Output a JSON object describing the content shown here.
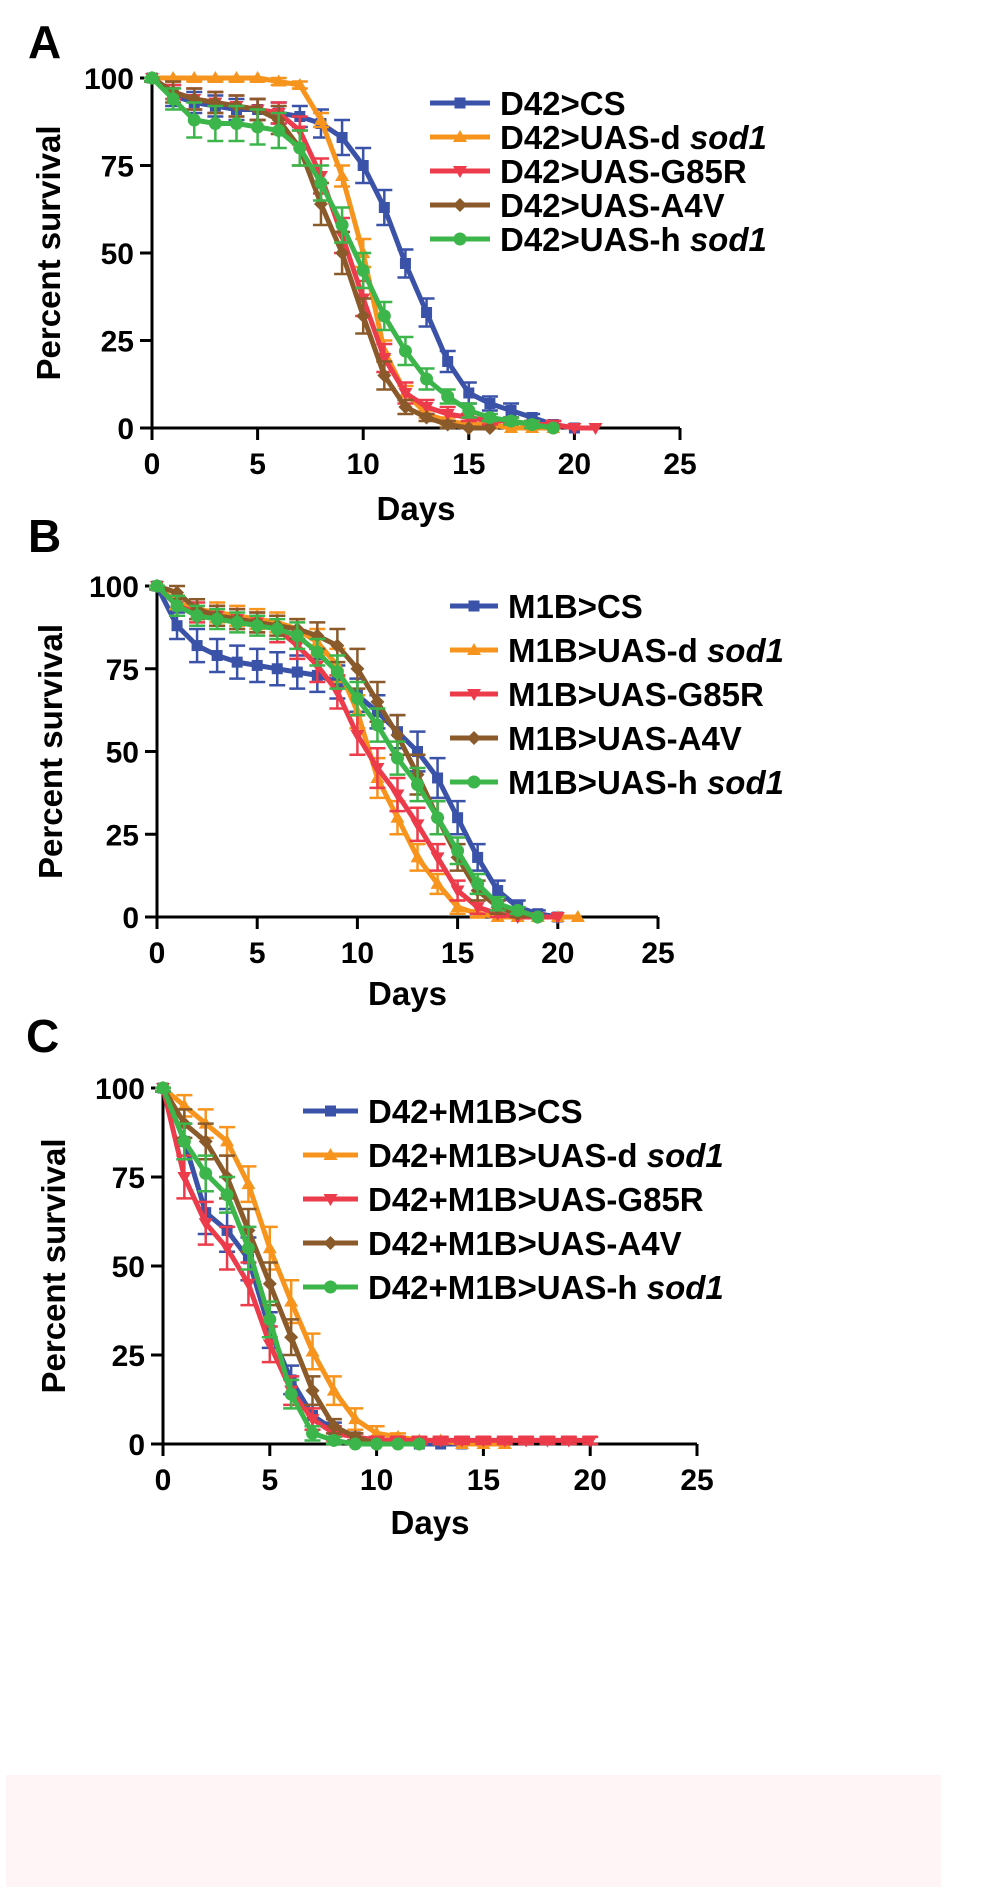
{
  "figure": {
    "panels": [
      "A",
      "B",
      "C"
    ]
  },
  "colors": {
    "blue": "#3a52a8",
    "orange": "#f7941d",
    "red": "#ec3b4a",
    "brown": "#8a5a2b",
    "green": "#3cb54a"
  },
  "chart_data": [
    {
      "type": "line",
      "panel": "A",
      "xlabel": "Days",
      "ylabel": "Percent survival",
      "xlim": [
        0,
        25
      ],
      "ylim": [
        0,
        100
      ],
      "xticks": [
        "0",
        "5",
        "10",
        "15",
        "20",
        "25"
      ],
      "yticks": [
        "0",
        "25",
        "50",
        "75",
        "100"
      ],
      "series": [
        {
          "name": "D42>CS",
          "label": "D42>CS",
          "italic": "",
          "color": "#3a52a8",
          "marker": "square",
          "x": [
            0,
            1,
            2,
            3,
            4,
            5,
            6,
            7,
            8,
            9,
            10,
            11,
            12,
            13,
            14,
            15,
            16,
            17,
            18,
            19,
            20
          ],
          "y": [
            100,
            95,
            93,
            92,
            91,
            91,
            90,
            89,
            87,
            83,
            75,
            63,
            47,
            33,
            19,
            10,
            7,
            5,
            3,
            1,
            0
          ],
          "err": [
            1,
            3,
            3,
            3,
            3,
            3,
            3,
            3,
            4,
            5,
            5,
            5,
            4,
            4,
            3,
            3,
            2,
            2,
            1,
            1,
            0
          ]
        },
        {
          "name": "D42>UAS-d sod1",
          "label": "D42>UAS-d ",
          "italic": "sod1",
          "color": "#f7941d",
          "marker": "triangle-up",
          "x": [
            0,
            1,
            2,
            3,
            4,
            5,
            6,
            7,
            8,
            9,
            10,
            11,
            12,
            13,
            14,
            15,
            16,
            17,
            18,
            19
          ],
          "y": [
            100,
            100,
            100,
            100,
            100,
            100,
            99,
            98,
            88,
            72,
            50,
            22,
            10,
            4,
            2,
            1,
            1,
            0,
            0,
            0
          ],
          "err": [
            0,
            1,
            1,
            1,
            1,
            1,
            1,
            1,
            2,
            3,
            4,
            3,
            2,
            1,
            1,
            1,
            1,
            0,
            0,
            0
          ]
        },
        {
          "name": "D42>UAS-G85R",
          "label": "D42>UAS-G85R",
          "italic": "",
          "color": "#ec3b4a",
          "marker": "triangle-down",
          "x": [
            0,
            1,
            2,
            3,
            4,
            5,
            6,
            7,
            8,
            9,
            10,
            11,
            12,
            13,
            14,
            15,
            16,
            17,
            18,
            19,
            20,
            21
          ],
          "y": [
            100,
            96,
            94,
            93,
            92,
            91,
            90,
            85,
            72,
            55,
            37,
            20,
            10,
            6,
            4,
            3,
            2,
            2,
            1,
            1,
            0,
            0
          ],
          "err": [
            1,
            2,
            3,
            3,
            3,
            3,
            3,
            4,
            5,
            5,
            5,
            4,
            3,
            2,
            2,
            1,
            1,
            1,
            1,
            1,
            0,
            0
          ]
        },
        {
          "name": "D42>UAS-A4V",
          "label": "D42>UAS-A4V",
          "italic": "",
          "color": "#8a5a2b",
          "marker": "diamond",
          "x": [
            0,
            1,
            2,
            3,
            4,
            5,
            6,
            7,
            8,
            9,
            10,
            11,
            12,
            13,
            14,
            15,
            16
          ],
          "y": [
            100,
            96,
            94,
            93,
            92,
            91,
            88,
            80,
            64,
            50,
            32,
            15,
            6,
            3,
            1,
            0,
            0
          ],
          "err": [
            1,
            3,
            3,
            3,
            3,
            3,
            4,
            5,
            6,
            6,
            5,
            4,
            2,
            1,
            1,
            0,
            0
          ]
        },
        {
          "name": "D42>UAS-h sod1",
          "label": "D42>UAS-h ",
          "italic": "sod1",
          "color": "#3cb54a",
          "marker": "circle",
          "x": [
            0,
            1,
            2,
            3,
            4,
            5,
            6,
            7,
            8,
            9,
            10,
            11,
            12,
            13,
            14,
            15,
            16,
            17,
            18,
            19
          ],
          "y": [
            100,
            94,
            88,
            87,
            87,
            86,
            85,
            80,
            70,
            58,
            45,
            32,
            22,
            14,
            9,
            5,
            3,
            2,
            1,
            0
          ],
          "err": [
            1,
            3,
            5,
            5,
            5,
            5,
            5,
            5,
            5,
            5,
            5,
            4,
            4,
            3,
            2,
            2,
            1,
            1,
            1,
            0
          ]
        }
      ]
    },
    {
      "type": "line",
      "panel": "B",
      "xlabel": "Days",
      "ylabel": "Percent survival",
      "xlim": [
        0,
        25
      ],
      "ylim": [
        0,
        100
      ],
      "xticks": [
        "0",
        "5",
        "10",
        "15",
        "20",
        "25"
      ],
      "yticks": [
        "0",
        "25",
        "50",
        "75",
        "100"
      ],
      "series": [
        {
          "name": "M1B>CS",
          "label": "M1B>CS",
          "italic": "",
          "color": "#3a52a8",
          "marker": "square",
          "x": [
            0,
            1,
            2,
            3,
            4,
            5,
            6,
            7,
            8,
            9,
            10,
            11,
            12,
            13,
            14,
            15,
            16,
            17,
            18,
            19,
            20
          ],
          "y": [
            100,
            88,
            82,
            79,
            77,
            76,
            75,
            74,
            73,
            71,
            67,
            62,
            56,
            50,
            42,
            30,
            18,
            8,
            3,
            1,
            0
          ],
          "err": [
            1,
            4,
            5,
            5,
            5,
            5,
            5,
            5,
            5,
            5,
            5,
            5,
            5,
            6,
            6,
            5,
            4,
            3,
            2,
            1,
            0
          ]
        },
        {
          "name": "M1B>UAS-d sod1",
          "label": "M1B>UAS-d ",
          "italic": "sod1",
          "color": "#f7941d",
          "marker": "triangle-up",
          "x": [
            0,
            1,
            2,
            3,
            4,
            5,
            6,
            7,
            8,
            9,
            10,
            11,
            12,
            13,
            14,
            15,
            16,
            17,
            18,
            19,
            20,
            21
          ],
          "y": [
            100,
            95,
            93,
            92,
            91,
            90,
            89,
            87,
            83,
            76,
            62,
            42,
            30,
            18,
            10,
            3,
            1,
            0,
            0,
            0,
            0,
            0
          ],
          "err": [
            1,
            2,
            3,
            3,
            3,
            3,
            3,
            3,
            4,
            5,
            5,
            6,
            5,
            4,
            3,
            2,
            1,
            0,
            0,
            0,
            0,
            0
          ]
        },
        {
          "name": "M1B>UAS-G85R",
          "label": "M1B>UAS-G85R",
          "italic": "",
          "color": "#ec3b4a",
          "marker": "triangle-down",
          "x": [
            0,
            1,
            2,
            3,
            4,
            5,
            6,
            7,
            8,
            9,
            10,
            11,
            12,
            13,
            14,
            15,
            16,
            17,
            18,
            19,
            20
          ],
          "y": [
            100,
            94,
            92,
            91,
            90,
            89,
            87,
            82,
            76,
            68,
            55,
            45,
            37,
            28,
            18,
            8,
            3,
            1,
            0,
            0,
            0
          ],
          "err": [
            1,
            3,
            3,
            3,
            3,
            3,
            4,
            4,
            5,
            5,
            6,
            6,
            5,
            5,
            4,
            3,
            2,
            1,
            0,
            0,
            0
          ]
        },
        {
          "name": "M1B>UAS-A4V",
          "label": "M1B>UAS-A4V",
          "italic": "",
          "color": "#8a5a2b",
          "marker": "diamond",
          "x": [
            0,
            1,
            2,
            3,
            4,
            5,
            6,
            7,
            8,
            9,
            10,
            11,
            12,
            13,
            14,
            15,
            16,
            17,
            18,
            19
          ],
          "y": [
            100,
            98,
            93,
            91,
            90,
            89,
            88,
            87,
            85,
            82,
            75,
            65,
            55,
            43,
            30,
            18,
            8,
            3,
            1,
            0
          ],
          "err": [
            1,
            2,
            3,
            3,
            3,
            3,
            3,
            3,
            4,
            5,
            6,
            6,
            6,
            6,
            5,
            4,
            3,
            2,
            1,
            0
          ]
        },
        {
          "name": "M1B>UAS-h sod1",
          "label": "M1B>UAS-h ",
          "italic": "sod1",
          "color": "#3cb54a",
          "marker": "circle",
          "x": [
            0,
            1,
            2,
            3,
            4,
            5,
            6,
            7,
            8,
            9,
            10,
            11,
            12,
            13,
            14,
            15,
            16,
            17,
            18,
            19
          ],
          "y": [
            100,
            94,
            91,
            90,
            89,
            88,
            87,
            85,
            80,
            74,
            66,
            58,
            48,
            40,
            30,
            20,
            10,
            4,
            2,
            0
          ],
          "err": [
            1,
            3,
            3,
            3,
            3,
            3,
            3,
            4,
            4,
            5,
            5,
            5,
            5,
            5,
            5,
            4,
            3,
            2,
            1,
            0
          ]
        }
      ]
    },
    {
      "type": "line",
      "panel": "C",
      "xlabel": "Days",
      "ylabel": "Percent survival",
      "xlim": [
        0,
        25
      ],
      "ylim": [
        0,
        100
      ],
      "xticks": [
        "0",
        "5",
        "10",
        "15",
        "20",
        "25"
      ],
      "yticks": [
        "0",
        "25",
        "50",
        "75",
        "100"
      ],
      "series": [
        {
          "name": "D42+M1B>CS",
          "label": "D42+M1B>CS",
          "italic": "",
          "color": "#3a52a8",
          "marker": "square",
          "x": [
            0,
            1,
            2,
            3,
            4,
            5,
            6,
            7,
            8,
            9,
            10,
            11,
            12,
            13,
            14
          ],
          "y": [
            100,
            85,
            65,
            60,
            52,
            32,
            18,
            8,
            4,
            2,
            1,
            1,
            0,
            0,
            0
          ],
          "err": [
            1,
            5,
            6,
            6,
            6,
            5,
            4,
            3,
            2,
            1,
            1,
            1,
            0,
            0,
            0
          ]
        },
        {
          "name": "D42+M1B>UAS-d sod1",
          "label": "D42+M1B>UAS-d ",
          "italic": "sod1",
          "color": "#f7941d",
          "marker": "triangle-up",
          "x": [
            0,
            1,
            2,
            3,
            4,
            5,
            6,
            7,
            8,
            9,
            10,
            11,
            12,
            13,
            14,
            15,
            16
          ],
          "y": [
            100,
            95,
            90,
            85,
            73,
            55,
            40,
            26,
            15,
            7,
            3,
            2,
            1,
            1,
            0,
            0,
            0
          ],
          "err": [
            1,
            3,
            4,
            4,
            5,
            6,
            6,
            5,
            4,
            3,
            2,
            1,
            1,
            1,
            0,
            0,
            0
          ]
        },
        {
          "name": "D42+M1B>UAS-G85R",
          "label": "D42+M1B>UAS-G85R",
          "italic": "",
          "color": "#ec3b4a",
          "marker": "triangle-down",
          "x": [
            0,
            1,
            2,
            3,
            4,
            5,
            6,
            7,
            8,
            9,
            10,
            11,
            12,
            13,
            14,
            15,
            16,
            17,
            18,
            19,
            20
          ],
          "y": [
            100,
            75,
            62,
            55,
            45,
            28,
            15,
            7,
            3,
            2,
            1,
            1,
            1,
            1,
            1,
            1,
            1,
            1,
            1,
            1,
            1
          ],
          "err": [
            1,
            6,
            6,
            6,
            6,
            5,
            4,
            3,
            2,
            1,
            1,
            1,
            1,
            1,
            1,
            1,
            1,
            1,
            1,
            1,
            1
          ]
        },
        {
          "name": "D42+M1B>UAS-A4V",
          "label": "D42+M1B>UAS-A4V",
          "italic": "",
          "color": "#8a5a2b",
          "marker": "diamond",
          "x": [
            0,
            1,
            2,
            3,
            4,
            5,
            6,
            7,
            8,
            9,
            10
          ],
          "y": [
            100,
            90,
            85,
            75,
            60,
            45,
            30,
            15,
            5,
            2,
            0
          ],
          "err": [
            1,
            4,
            5,
            6,
            6,
            6,
            5,
            4,
            2,
            1,
            0
          ]
        },
        {
          "name": "D42+M1B>UAS-h sod1",
          "label": "D42+M1B>UAS-h ",
          "italic": "sod1",
          "color": "#3cb54a",
          "marker": "circle",
          "x": [
            0,
            1,
            2,
            3,
            4,
            5,
            6,
            7,
            8,
            9,
            10,
            11,
            12
          ],
          "y": [
            100,
            85,
            76,
            70,
            55,
            35,
            14,
            3,
            1,
            0,
            0,
            0,
            0
          ],
          "err": [
            1,
            5,
            5,
            5,
            6,
            5,
            4,
            2,
            1,
            0,
            0,
            0,
            0
          ]
        }
      ]
    }
  ]
}
